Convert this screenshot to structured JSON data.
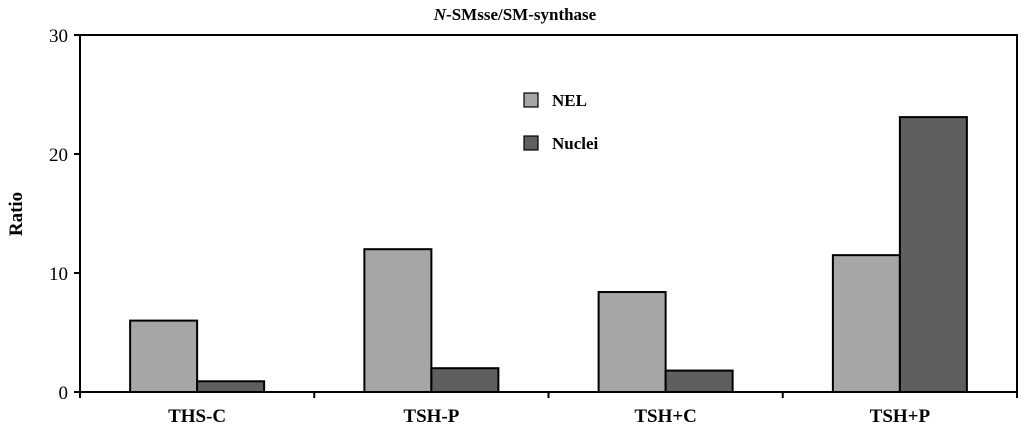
{
  "chart_data": {
    "type": "bar",
    "title_italic": "N",
    "title_rest": "-SMsse/SM-synthase",
    "xlabel": "",
    "ylabel": "Ratio",
    "ylim": [
      0,
      30
    ],
    "yticks": [
      "0",
      "10",
      "20",
      "30"
    ],
    "categories": [
      "THS-C",
      "TSH-P",
      "TSH+C",
      "TSH+P"
    ],
    "series": [
      {
        "name": "NEL",
        "values": [
          6.0,
          12.0,
          8.4,
          11.5
        ],
        "color": "#a6a6a6"
      },
      {
        "name": "Nuclei",
        "values": [
          0.9,
          2.0,
          1.8,
          23.1
        ],
        "color": "#5f5f5f"
      }
    ],
    "grid": false,
    "legend_position": "top-center"
  }
}
